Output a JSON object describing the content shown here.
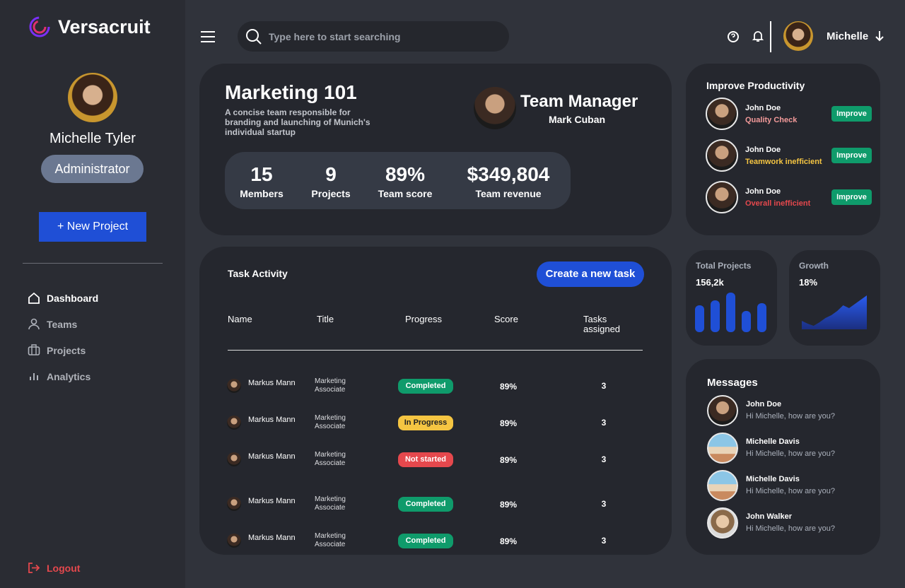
{
  "sidebar": {
    "brand": "Versacruit",
    "user_name": "Michelle Tyler",
    "role": "Administrator",
    "new_project": "+ New Project",
    "nav": [
      "Dashboard",
      "Teams",
      "Projects",
      "Analytics"
    ],
    "logout": "Logout"
  },
  "topbar": {
    "search_placeholder": "Type here to start searching",
    "user": "Michelle"
  },
  "team_card": {
    "title": "Marketing 101",
    "description": "A concise team responsible for branding and launching of Munich's individual startup",
    "manager_role": "Team Manager",
    "manager_name": "Mark Cuban",
    "stats": [
      {
        "value": "15",
        "label": "Members"
      },
      {
        "value": "9",
        "label": "Projects"
      },
      {
        "value": "89%",
        "label": "Team score"
      },
      {
        "value": "$349,804",
        "label": "Team revenue"
      }
    ]
  },
  "productivity": {
    "title": "Improve Productivity",
    "items": [
      {
        "name": "John Doe",
        "issue": "Quality Check",
        "action": "Improve"
      },
      {
        "name": "John Doe",
        "issue": "Teamwork inefficient",
        "action": "Improve"
      },
      {
        "name": "John Doe",
        "issue": "Overall inefficient",
        "action": "Improve"
      }
    ]
  },
  "task_activity": {
    "title": "Task Activity",
    "button": "Create a new task",
    "columns": [
      "Name",
      "Title",
      "Progress",
      "Score",
      "Tasks assigned"
    ],
    "rows": [
      [
        "Markus Mann",
        "Marketing Associate",
        "Completed",
        "89%",
        "3"
      ],
      [
        "Markus Mann",
        "Marketing Associate",
        "In Progress",
        "89%",
        "3"
      ],
      [
        "Markus Mann",
        "Marketing Associate",
        "Not started",
        "89%",
        "3"
      ],
      [
        "Markus Mann",
        "Marketing Associate",
        "Completed",
        "89%",
        "3"
      ],
      [
        "Markus Mann",
        "Marketing Associate",
        "Completed",
        "89%",
        "3"
      ]
    ]
  },
  "total_projects": {
    "label": "Total Projects",
    "value": "156,2k",
    "bars": [
      38,
      45,
      56,
      30,
      41
    ]
  },
  "growth": {
    "label": "Growth",
    "value": "18%",
    "series": [
      12,
      8,
      5,
      10,
      16,
      20,
      26,
      34,
      30,
      36,
      42,
      48
    ]
  },
  "messages": {
    "title": "Messages",
    "items": [
      {
        "name": "John Doe",
        "text": "Hi Michelle, how are you?"
      },
      {
        "name": "Michelle Davis",
        "text": "Hi Michelle, how are you?"
      },
      {
        "name": "Michelle Davis",
        "text": "Hi Michelle, how are you?"
      },
      {
        "name": "John Walker",
        "text": "Hi Michelle, how are you?"
      }
    ]
  }
}
